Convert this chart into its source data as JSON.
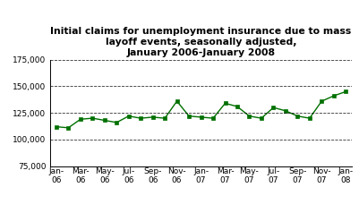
{
  "title": "Initial claims for unemployment insurance due to mass\nlayoff events, seasonally adjusted,\nJanuary 2006-January 2008",
  "values": [
    112000,
    111000,
    119000,
    120000,
    118000,
    116000,
    122000,
    120000,
    121000,
    120000,
    136000,
    122000,
    121000,
    120000,
    134000,
    131000,
    122000,
    120000,
    130000,
    127000,
    122000,
    120000,
    136000,
    141000,
    145000
  ],
  "tick_positions": [
    0,
    2,
    4,
    6,
    8,
    10,
    12,
    14,
    16,
    18,
    20,
    22,
    24
  ],
  "tick_labels": [
    "Jan-\n06",
    "Mar-\n06",
    "May-\n06",
    "Jul-\n06",
    "Sep-\n06",
    "Nov-\n06",
    "Jan-\n07",
    "Mar-\n07",
    "May-\n07",
    "Jul-\n07",
    "Sep-\n07",
    "Nov-\n07",
    "Jan-\n08"
  ],
  "line_color": "#007000",
  "marker_color": "#007000",
  "background_color": "#ffffff",
  "ylim": [
    75000,
    175000
  ],
  "yticks": [
    75000,
    100000,
    125000,
    150000,
    175000
  ],
  "grid_color": "#000000",
  "title_fontsize": 7.8,
  "tick_fontsize": 6.5
}
